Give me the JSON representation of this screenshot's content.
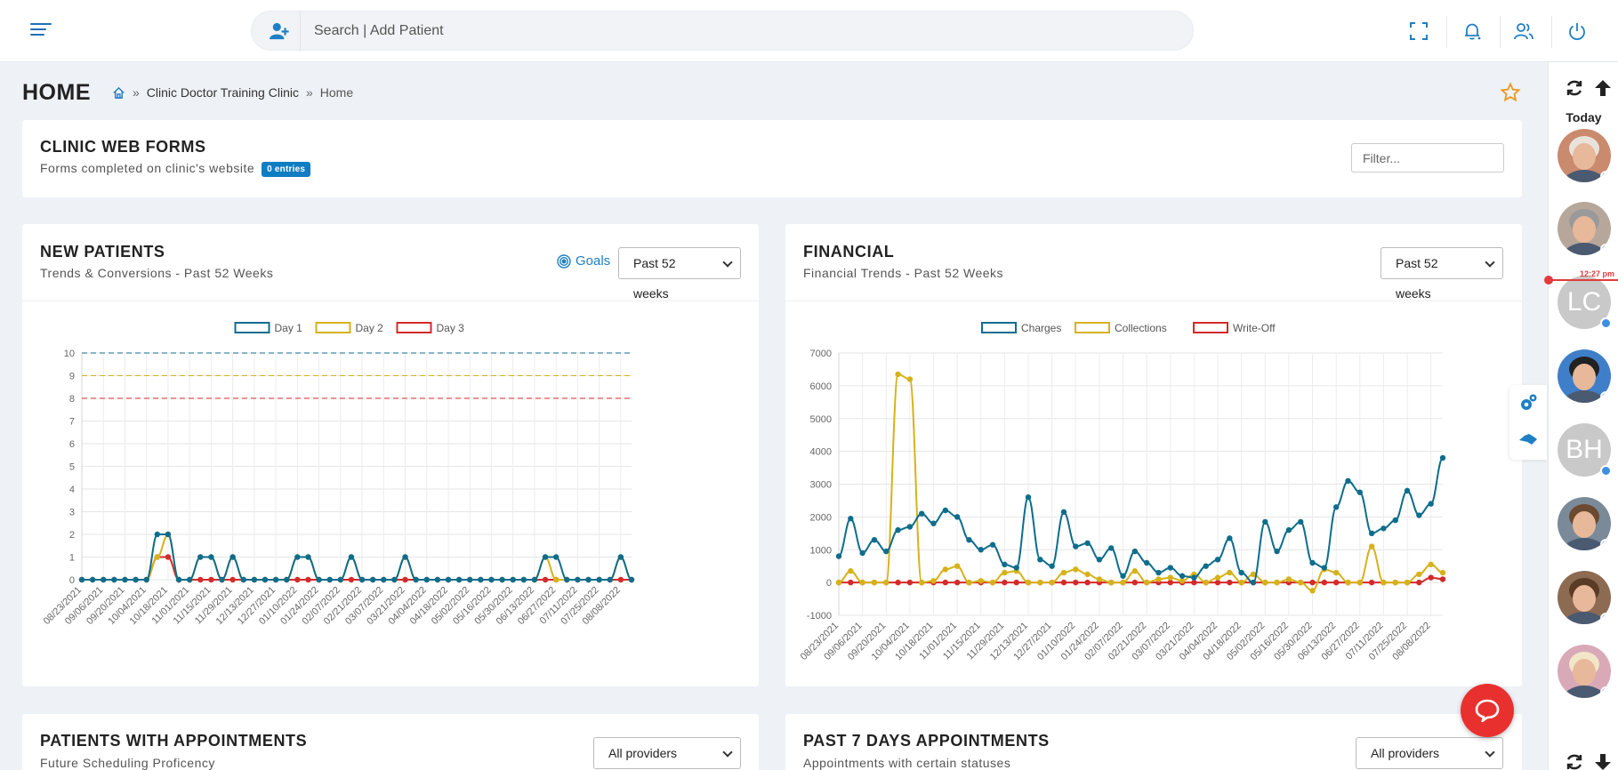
{
  "header": {
    "search_placeholder": "Search | Add Patient"
  },
  "page": {
    "title": "HOME",
    "breadcrumb": [
      "Clinic Doctor Training Clinic",
      "Home"
    ],
    "breadcrumb_sep": "»"
  },
  "web_forms": {
    "title": "CLINIC WEB FORMS",
    "subtitle": "Forms completed on clinic's website",
    "badge": "0 entries",
    "filter_placeholder": "Filter..."
  },
  "new_patients": {
    "title": "NEW PATIENTS",
    "subtitle": "Trends & Conversions - Past 52 Weeks",
    "goals_label": "Goals",
    "range": "Past 52 weeks"
  },
  "financial": {
    "title": "FINANCIAL",
    "subtitle": "Financial Trends - Past 52 Weeks",
    "range": "Past 52 weeks"
  },
  "appointments": {
    "title": "PATIENTS WITH APPOINTMENTS",
    "subtitle": "Future Scheduling Proficency",
    "provider": "All providers"
  },
  "past7": {
    "title": "PAST 7 DAYS APPOINTMENTS",
    "subtitle": "Appointments with certain statuses",
    "provider": "All providers"
  },
  "sidebar": {
    "today_label": "Today",
    "time_marker": "12:27 pm",
    "avatars": [
      {
        "type": "photo",
        "bg": "#c98a6e",
        "hair": "#e8e2da"
      },
      {
        "type": "photo",
        "bg": "#b7a79a",
        "hair": "#9a9a9a"
      },
      {
        "type": "initials",
        "initials": "LC"
      },
      {
        "type": "photo",
        "bg": "#3f7fc9",
        "hair": "#222222"
      },
      {
        "type": "initials",
        "initials": "BH"
      },
      {
        "type": "photo",
        "bg": "#7a8a99",
        "hair": "#6b4a30"
      },
      {
        "type": "photo",
        "bg": "#8d6a52",
        "hair": "#5a3c26"
      },
      {
        "type": "photo",
        "bg": "#d9a9b8",
        "hair": "#f1e7c8"
      }
    ]
  },
  "colors": {
    "accent": "#0f7dc2",
    "series_teal": "#0f6d8c",
    "series_yellow": "#d6b21a",
    "series_red": "#d42a2a"
  },
  "chart_data": [
    {
      "type": "line",
      "title": "",
      "x": [
        "08/23/2021",
        "08/30/2021",
        "09/06/2021",
        "09/13/2021",
        "09/20/2021",
        "09/27/2021",
        "10/04/2021",
        "10/11/2021",
        "10/18/2021",
        "10/25/2021",
        "11/01/2021",
        "11/08/2021",
        "11/15/2021",
        "11/22/2021",
        "11/29/2021",
        "12/06/2021",
        "12/13/2021",
        "12/20/2021",
        "12/27/2021",
        "01/03/2022",
        "01/10/2022",
        "01/17/2022",
        "01/24/2022",
        "01/31/2022",
        "02/07/2022",
        "02/14/2022",
        "02/21/2022",
        "02/28/2022",
        "03/07/2022",
        "03/14/2022",
        "03/21/2022",
        "03/28/2022",
        "04/04/2022",
        "04/11/2022",
        "04/18/2022",
        "04/25/2022",
        "05/02/2022",
        "05/09/2022",
        "05/16/2022",
        "05/23/2022",
        "05/30/2022",
        "06/06/2022",
        "06/13/2022",
        "06/20/2022",
        "06/27/2022",
        "07/04/2022",
        "07/11/2022",
        "07/18/2022",
        "07/25/2022",
        "08/01/2022",
        "08/08/2022",
        "08/15/2022"
      ],
      "tick_labels": [
        "08/23/2021",
        "09/06/2021",
        "09/20/2021",
        "10/04/2021",
        "10/18/2021",
        "11/01/2021",
        "11/15/2021",
        "11/29/2021",
        "12/13/2021",
        "12/27/2021",
        "01/10/2022",
        "01/24/2022",
        "02/07/2022",
        "02/21/2022",
        "03/07/2022",
        "03/21/2022",
        "04/04/2022",
        "04/18/2022",
        "05/02/2022",
        "05/16/2022",
        "05/30/2022",
        "06/13/2022",
        "06/27/2022",
        "07/11/2022",
        "07/25/2022",
        "08/08/2022"
      ],
      "ylim": [
        0,
        10
      ],
      "yticks": [
        0,
        1,
        2,
        3,
        4,
        5,
        6,
        7,
        8,
        9,
        10
      ],
      "legend": "top",
      "grid": true,
      "series": [
        {
          "name": "Day 1",
          "color": "#0f6d8c",
          "goal": 10,
          "values": [
            0,
            0,
            0,
            0,
            0,
            0,
            0,
            2,
            2,
            0,
            0,
            1,
            1,
            0,
            1,
            0,
            0,
            0,
            0,
            0,
            1,
            1,
            0,
            0,
            0,
            1,
            0,
            0,
            0,
            0,
            1,
            0,
            0,
            0,
            0,
            0,
            0,
            0,
            0,
            0,
            0,
            0,
            0,
            1,
            1,
            0,
            0,
            0,
            0,
            0,
            1,
            0
          ]
        },
        {
          "name": "Day 2",
          "color": "#d6b21a",
          "goal": 9,
          "values": [
            0,
            0,
            0,
            0,
            0,
            0,
            0,
            1,
            2,
            0,
            0,
            1,
            1,
            0,
            1,
            0,
            0,
            0,
            0,
            0,
            1,
            1,
            0,
            0,
            0,
            1,
            0,
            0,
            0,
            0,
            1,
            0,
            0,
            0,
            0,
            0,
            0,
            0,
            0,
            0,
            0,
            0,
            0,
            1,
            0,
            0,
            0,
            0,
            0,
            0,
            1,
            0
          ]
        },
        {
          "name": "Day 3",
          "color": "#d42a2a",
          "goal": 8,
          "values": [
            0,
            0,
            0,
            0,
            0,
            0,
            0,
            1,
            1,
            0,
            0,
            0,
            0,
            0,
            0,
            0,
            0,
            0,
            0,
            0,
            0,
            0,
            0,
            0,
            0,
            0,
            0,
            0,
            0,
            0,
            0,
            0,
            0,
            0,
            0,
            0,
            0,
            0,
            0,
            0,
            0,
            0,
            0,
            0,
            0,
            0,
            0,
            0,
            0,
            0,
            0,
            0
          ]
        }
      ]
    },
    {
      "type": "line",
      "title": "",
      "x": [
        "08/23/2021",
        "08/30/2021",
        "09/06/2021",
        "09/13/2021",
        "09/20/2021",
        "09/27/2021",
        "10/04/2021",
        "10/11/2021",
        "10/18/2021",
        "10/25/2021",
        "11/01/2021",
        "11/08/2021",
        "11/15/2021",
        "11/22/2021",
        "11/29/2021",
        "12/06/2021",
        "12/13/2021",
        "12/20/2021",
        "12/27/2021",
        "01/03/2022",
        "01/10/2022",
        "01/17/2022",
        "01/24/2022",
        "01/31/2022",
        "02/07/2022",
        "02/14/2022",
        "02/21/2022",
        "02/28/2022",
        "03/07/2022",
        "03/14/2022",
        "03/21/2022",
        "03/28/2022",
        "04/04/2022",
        "04/11/2022",
        "04/18/2022",
        "04/25/2022",
        "05/02/2022",
        "05/09/2022",
        "05/16/2022",
        "05/23/2022",
        "05/30/2022",
        "06/06/2022",
        "06/13/2022",
        "06/20/2022",
        "06/27/2022",
        "07/04/2022",
        "07/11/2022",
        "07/18/2022",
        "07/25/2022",
        "08/01/2022",
        "08/08/2022",
        "08/15/2022"
      ],
      "tick_labels": [
        "08/23/2021",
        "09/06/2021",
        "09/20/2021",
        "10/04/2021",
        "10/18/2021",
        "11/01/2021",
        "11/15/2021",
        "11/29/2021",
        "12/13/2021",
        "12/27/2021",
        "01/10/2022",
        "01/24/2022",
        "02/07/2022",
        "02/21/2022",
        "03/07/2022",
        "03/21/2022",
        "04/04/2022",
        "04/18/2022",
        "05/02/2022",
        "05/16/2022",
        "05/30/2022",
        "06/13/2022",
        "06/27/2022",
        "07/11/2022",
        "07/25/2022",
        "08/08/2022"
      ],
      "ylim": [
        -1000,
        7000
      ],
      "yticks": [
        -1000,
        0,
        1000,
        2000,
        3000,
        4000,
        5000,
        6000,
        7000
      ],
      "legend": "top",
      "grid": true,
      "series": [
        {
          "name": "Charges",
          "color": "#0f6d8c",
          "values": [
            800,
            1950,
            900,
            1300,
            950,
            1600,
            1700,
            2100,
            1800,
            2200,
            2000,
            1300,
            1000,
            1150,
            550,
            450,
            2600,
            700,
            500,
            2150,
            1100,
            1200,
            700,
            1050,
            200,
            950,
            600,
            300,
            450,
            200,
            150,
            500,
            700,
            1350,
            300,
            0,
            1850,
            950,
            1600,
            1850,
            600,
            450,
            2300,
            3100,
            2750,
            1500,
            1650,
            1900,
            2800,
            2050,
            2400,
            3800
          ]
        },
        {
          "name": "Collections",
          "color": "#d6b21a",
          "values": [
            0,
            350,
            0,
            0,
            0,
            6350,
            6200,
            0,
            50,
            400,
            500,
            0,
            50,
            0,
            300,
            350,
            0,
            0,
            0,
            300,
            400,
            250,
            100,
            0,
            0,
            350,
            0,
            100,
            150,
            50,
            250,
            0,
            150,
            300,
            0,
            250,
            0,
            0,
            100,
            0,
            -250,
            400,
            300,
            0,
            0,
            1100,
            0,
            0,
            0,
            250,
            550,
            300
          ]
        },
        {
          "name": "Write-Off",
          "color": "#d42a2a",
          "values": [
            0,
            0,
            0,
            0,
            0,
            0,
            0,
            0,
            0,
            0,
            0,
            0,
            0,
            0,
            0,
            0,
            0,
            0,
            0,
            0,
            0,
            0,
            0,
            0,
            0,
            0,
            0,
            0,
            0,
            0,
            0,
            0,
            0,
            0,
            0,
            0,
            0,
            0,
            0,
            0,
            0,
            0,
            0,
            0,
            0,
            0,
            0,
            0,
            0,
            0,
            150,
            100
          ]
        }
      ]
    }
  ]
}
